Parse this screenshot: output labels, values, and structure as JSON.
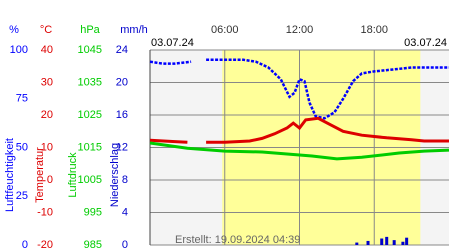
{
  "chart_data": {
    "type": "line",
    "date_left": "03.07.24",
    "date_right": "03.07.24",
    "footer": "Erstellt: 19.09.2024 04:39",
    "xlim": [
      0,
      24
    ],
    "xticks": [
      {
        "value": 6,
        "label": "06:00"
      },
      {
        "value": 12,
        "label": "12:00"
      },
      {
        "value": 18,
        "label": "18:00"
      }
    ],
    "daylight": [
      5.8,
      21.7
    ],
    "grid": true,
    "axes": [
      {
        "title": "Luftfeuchtigkeit",
        "unit": "%",
        "color": "#0000ff",
        "ylim": [
          0,
          100
        ],
        "yticks": [
          0,
          25,
          50,
          75,
          100
        ],
        "type": "line",
        "x": [
          0,
          1,
          2,
          3.3,
          4,
          4.5,
          6,
          7.5,
          8.5,
          9.5,
          10.5,
          11.2,
          11.6,
          12,
          12.4,
          12.8,
          13.3,
          14,
          14.8,
          15.5,
          16.3,
          17,
          18,
          19.5,
          21,
          22.5,
          24
        ],
        "values": [
          94,
          93,
          93,
          94,
          null,
          95,
          95,
          95,
          94,
          91,
          85,
          76,
          78,
          85,
          84,
          73,
          66,
          65,
          68,
          75,
          84,
          88,
          89,
          90,
          91,
          91,
          91
        ]
      },
      {
        "title": "Temperatur",
        "unit": "°C",
        "color": "#dd0000",
        "ylim": [
          -20,
          40
        ],
        "yticks": [
          -20,
          -10,
          0,
          10,
          20,
          30,
          40
        ],
        "type": "line",
        "x": [
          0,
          2,
          3,
          3.8,
          4.5,
          6,
          8,
          9,
          10,
          11,
          11.5,
          12,
          12.5,
          13.5,
          14.5,
          15.5,
          17,
          19,
          21,
          22,
          24
        ],
        "values": [
          12.2,
          11.8,
          11.6,
          null,
          11.6,
          11.6,
          12,
          12.8,
          14.2,
          16,
          17.5,
          16,
          18.5,
          19,
          17,
          15,
          13.8,
          13,
          12.4,
          12,
          12
        ]
      },
      {
        "title": "Luftdruck",
        "unit": "hPa",
        "color": "#00cc00",
        "ylim": [
          985,
          1045
        ],
        "yticks": [
          985,
          995,
          1005,
          1015,
          1025,
          1035,
          1045
        ],
        "type": "line",
        "x": [
          0,
          3,
          6,
          9,
          13,
          15,
          17,
          20,
          22,
          24
        ],
        "values": [
          1016.4,
          1014.8,
          1013.9,
          1013.6,
          1012.4,
          1011.5,
          1012,
          1013.3,
          1013.9,
          1014.2
        ]
      },
      {
        "title": "Niederschlag",
        "unit": "mm/h",
        "color": "#0000cc",
        "ylim": [
          0,
          24
        ],
        "yticks": [
          0,
          4,
          8,
          12,
          16,
          20,
          24
        ],
        "type": "bar",
        "x": [
          16.6,
          17.5,
          18.6,
          19,
          19.6,
          20.3,
          20.6
        ],
        "values": [
          0.3,
          0.5,
          0.8,
          1.0,
          0.6,
          0.4,
          0.9
        ]
      }
    ]
  }
}
